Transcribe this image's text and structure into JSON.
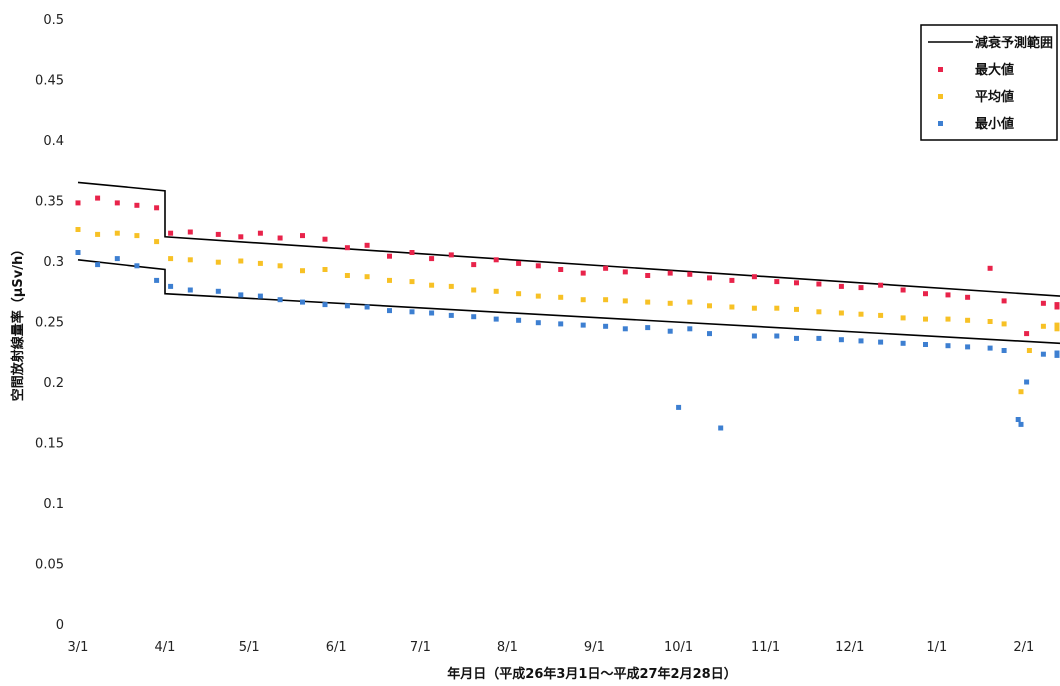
{
  "chart_data": {
    "type": "scatter",
    "title": "",
    "xlabel": "年月日（平成26年3月1日～平成27年2月28日）",
    "ylabel": "空間放射線量率（μSv/h）",
    "ylim": [
      0,
      0.5
    ],
    "yticks": [
      {
        "value": 0,
        "label": "0"
      },
      {
        "value": 0.05,
        "label": "0.05"
      },
      {
        "value": 0.1,
        "label": "0.1"
      },
      {
        "value": 0.15,
        "label": "0.15"
      },
      {
        "value": 0.2,
        "label": "0.2"
      },
      {
        "value": 0.25,
        "label": "0.25"
      },
      {
        "value": 0.3,
        "label": "0.3"
      },
      {
        "value": 0.35,
        "label": "0.35"
      },
      {
        "value": 0.4,
        "label": "0.4"
      },
      {
        "value": 0.45,
        "label": "0.45"
      },
      {
        "value": 0.5,
        "label": "0.5"
      }
    ],
    "xlim": [
      "2014-03-01",
      "2015-02-28"
    ],
    "xticks": [
      {
        "date": "2014-03-01",
        "label": "3/1"
      },
      {
        "date": "2014-04-01",
        "label": "4/1"
      },
      {
        "date": "2014-05-01",
        "label": "5/1"
      },
      {
        "date": "2014-06-01",
        "label": "6/1"
      },
      {
        "date": "2014-07-01",
        "label": "7/1"
      },
      {
        "date": "2014-08-01",
        "label": "8/1"
      },
      {
        "date": "2014-09-01",
        "label": "9/1"
      },
      {
        "date": "2014-10-01",
        "label": "10/1"
      },
      {
        "date": "2014-11-01",
        "label": "11/1"
      },
      {
        "date": "2014-12-01",
        "label": "12/1"
      },
      {
        "date": "2015-01-01",
        "label": "1/1"
      },
      {
        "date": "2015-02-01",
        "label": "2/1"
      }
    ],
    "grid": false,
    "legend_position": "top-right",
    "legend": [
      {
        "label": "減衰予測範囲",
        "type": "line",
        "color": "#000000"
      },
      {
        "label": "最大値",
        "type": "marker",
        "color": "#e8234a"
      },
      {
        "label": "平均値",
        "type": "marker",
        "color": "#f7c125"
      },
      {
        "label": "最小値",
        "type": "marker",
        "color": "#3d7fd1"
      }
    ],
    "prediction_band": {
      "upper": [
        {
          "x": "2014-03-01",
          "y": 0.365
        },
        {
          "x": "2014-04-01",
          "y": 0.358
        },
        {
          "x": "2014-04-01",
          "y": 0.32
        },
        {
          "x": "2015-02-28",
          "y": 0.271
        }
      ],
      "lower": [
        {
          "x": "2014-03-01",
          "y": 0.301
        },
        {
          "x": "2014-04-01",
          "y": 0.293
        },
        {
          "x": "2014-04-01",
          "y": 0.273
        },
        {
          "x": "2015-02-28",
          "y": 0.232
        }
      ]
    },
    "series": [
      {
        "name": "最大値",
        "color": "#e8234a",
        "points": [
          [
            "2014-03-01",
            0.348
          ],
          [
            "2014-03-08",
            0.352
          ],
          [
            "2014-03-15",
            0.348
          ],
          [
            "2014-03-22",
            0.346
          ],
          [
            "2014-03-29",
            0.344
          ],
          [
            "2014-04-03",
            0.323
          ],
          [
            "2014-04-10",
            0.324
          ],
          [
            "2014-04-20",
            0.322
          ],
          [
            "2014-04-28",
            0.32
          ],
          [
            "2014-05-05",
            0.323
          ],
          [
            "2014-05-12",
            0.319
          ],
          [
            "2014-05-20",
            0.321
          ],
          [
            "2014-05-28",
            0.318
          ],
          [
            "2014-06-05",
            0.311
          ],
          [
            "2014-06-12",
            0.313
          ],
          [
            "2014-06-20",
            0.304
          ],
          [
            "2014-06-28",
            0.307
          ],
          [
            "2014-07-05",
            0.302
          ],
          [
            "2014-07-12",
            0.305
          ],
          [
            "2014-07-20",
            0.297
          ],
          [
            "2014-07-28",
            0.301
          ],
          [
            "2014-08-05",
            0.298
          ],
          [
            "2014-08-12",
            0.296
          ],
          [
            "2014-08-20",
            0.293
          ],
          [
            "2014-08-28",
            0.29
          ],
          [
            "2014-09-05",
            0.294
          ],
          [
            "2014-09-12",
            0.291
          ],
          [
            "2014-09-20",
            0.288
          ],
          [
            "2014-09-28",
            0.29
          ],
          [
            "2014-10-05",
            0.289
          ],
          [
            "2014-10-12",
            0.286
          ],
          [
            "2014-10-20",
            0.284
          ],
          [
            "2014-10-28",
            0.287
          ],
          [
            "2014-11-05",
            0.283
          ],
          [
            "2014-11-12",
            0.282
          ],
          [
            "2014-11-20",
            0.281
          ],
          [
            "2014-11-28",
            0.279
          ],
          [
            "2014-12-05",
            0.278
          ],
          [
            "2014-12-12",
            0.28
          ],
          [
            "2014-12-20",
            0.276
          ],
          [
            "2014-12-28",
            0.273
          ],
          [
            "2015-01-05",
            0.272
          ],
          [
            "2015-01-12",
            0.27
          ],
          [
            "2015-01-20",
            0.294
          ],
          [
            "2015-01-25",
            0.267
          ],
          [
            "2015-02-02",
            0.24
          ],
          [
            "2015-02-08",
            0.265
          ],
          [
            "2015-02-15",
            0.264
          ],
          [
            "2015-02-22",
            0.262
          ],
          [
            "2015-02-27",
            0.262
          ]
        ]
      },
      {
        "name": "平均値",
        "color": "#f7c125",
        "points": [
          [
            "2014-03-01",
            0.326
          ],
          [
            "2014-03-08",
            0.322
          ],
          [
            "2014-03-15",
            0.323
          ],
          [
            "2014-03-22",
            0.321
          ],
          [
            "2014-03-29",
            0.316
          ],
          [
            "2014-04-03",
            0.302
          ],
          [
            "2014-04-10",
            0.301
          ],
          [
            "2014-04-20",
            0.299
          ],
          [
            "2014-04-28",
            0.3
          ],
          [
            "2014-05-05",
            0.298
          ],
          [
            "2014-05-12",
            0.296
          ],
          [
            "2014-05-20",
            0.292
          ],
          [
            "2014-05-28",
            0.293
          ],
          [
            "2014-06-05",
            0.288
          ],
          [
            "2014-06-12",
            0.287
          ],
          [
            "2014-06-20",
            0.284
          ],
          [
            "2014-06-28",
            0.283
          ],
          [
            "2014-07-05",
            0.28
          ],
          [
            "2014-07-12",
            0.279
          ],
          [
            "2014-07-20",
            0.276
          ],
          [
            "2014-07-28",
            0.275
          ],
          [
            "2014-08-05",
            0.273
          ],
          [
            "2014-08-12",
            0.271
          ],
          [
            "2014-08-20",
            0.27
          ],
          [
            "2014-08-28",
            0.268
          ],
          [
            "2014-09-05",
            0.268
          ],
          [
            "2014-09-12",
            0.267
          ],
          [
            "2014-09-20",
            0.266
          ],
          [
            "2014-09-28",
            0.265
          ],
          [
            "2014-10-05",
            0.266
          ],
          [
            "2014-10-12",
            0.263
          ],
          [
            "2014-10-20",
            0.262
          ],
          [
            "2014-10-28",
            0.261
          ],
          [
            "2014-11-05",
            0.261
          ],
          [
            "2014-11-12",
            0.26
          ],
          [
            "2014-11-20",
            0.258
          ],
          [
            "2014-11-28",
            0.257
          ],
          [
            "2014-12-05",
            0.256
          ],
          [
            "2014-12-12",
            0.255
          ],
          [
            "2014-12-20",
            0.253
          ],
          [
            "2014-12-28",
            0.252
          ],
          [
            "2015-01-05",
            0.252
          ],
          [
            "2015-01-12",
            0.251
          ],
          [
            "2015-01-20",
            0.25
          ],
          [
            "2015-01-25",
            0.248
          ],
          [
            "2015-01-31",
            0.192
          ],
          [
            "2015-02-03",
            0.226
          ],
          [
            "2015-02-08",
            0.246
          ],
          [
            "2015-02-15",
            0.247
          ],
          [
            "2015-02-22",
            0.244
          ],
          [
            "2015-02-27",
            0.245
          ]
        ]
      },
      {
        "name": "最小値",
        "color": "#3d7fd1",
        "points": [
          [
            "2014-03-01",
            0.307
          ],
          [
            "2014-03-08",
            0.297
          ],
          [
            "2014-03-15",
            0.302
          ],
          [
            "2014-03-22",
            0.296
          ],
          [
            "2014-03-29",
            0.284
          ],
          [
            "2014-04-03",
            0.279
          ],
          [
            "2014-04-10",
            0.276
          ],
          [
            "2014-04-20",
            0.275
          ],
          [
            "2014-04-28",
            0.272
          ],
          [
            "2014-05-05",
            0.271
          ],
          [
            "2014-05-12",
            0.268
          ],
          [
            "2014-05-20",
            0.266
          ],
          [
            "2014-05-28",
            0.264
          ],
          [
            "2014-06-05",
            0.263
          ],
          [
            "2014-06-12",
            0.262
          ],
          [
            "2014-06-20",
            0.259
          ],
          [
            "2014-06-28",
            0.258
          ],
          [
            "2014-07-05",
            0.257
          ],
          [
            "2014-07-12",
            0.255
          ],
          [
            "2014-07-20",
            0.254
          ],
          [
            "2014-07-28",
            0.252
          ],
          [
            "2014-08-05",
            0.251
          ],
          [
            "2014-08-12",
            0.249
          ],
          [
            "2014-08-20",
            0.248
          ],
          [
            "2014-08-28",
            0.247
          ],
          [
            "2014-09-05",
            0.246
          ],
          [
            "2014-09-12",
            0.244
          ],
          [
            "2014-09-20",
            0.245
          ],
          [
            "2014-09-28",
            0.242
          ],
          [
            "2014-10-01",
            0.179
          ],
          [
            "2014-10-05",
            0.244
          ],
          [
            "2014-10-12",
            0.24
          ],
          [
            "2014-10-16",
            0.162
          ],
          [
            "2014-10-28",
            0.238
          ],
          [
            "2014-11-05",
            0.238
          ],
          [
            "2014-11-12",
            0.236
          ],
          [
            "2014-11-20",
            0.236
          ],
          [
            "2014-11-28",
            0.235
          ],
          [
            "2014-12-05",
            0.234
          ],
          [
            "2014-12-12",
            0.233
          ],
          [
            "2014-12-20",
            0.232
          ],
          [
            "2014-12-28",
            0.231
          ],
          [
            "2015-01-05",
            0.23
          ],
          [
            "2015-01-12",
            0.229
          ],
          [
            "2015-01-20",
            0.228
          ],
          [
            "2015-01-25",
            0.226
          ],
          [
            "2015-01-30",
            0.169
          ],
          [
            "2015-01-31",
            0.165
          ],
          [
            "2015-02-02",
            0.2
          ],
          [
            "2015-02-08",
            0.223
          ],
          [
            "2015-02-15",
            0.224
          ],
          [
            "2015-02-22",
            0.222
          ],
          [
            "2015-02-27",
            0.223
          ]
        ]
      }
    ]
  }
}
